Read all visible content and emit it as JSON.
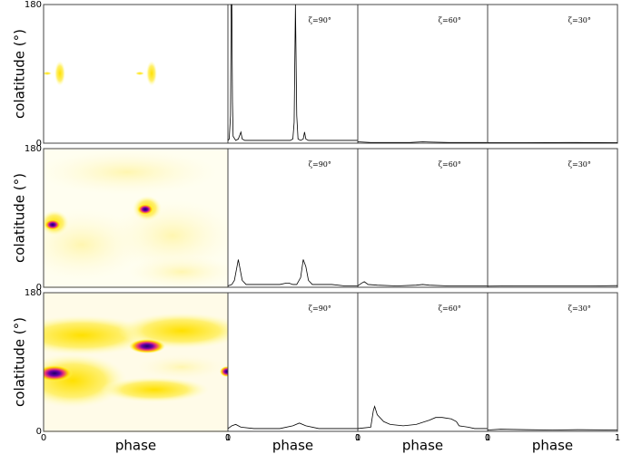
{
  "chart_data": [
    {
      "type": "heatmap",
      "ylabel": "colatitude (°)",
      "ylim": [
        0,
        180
      ],
      "yticks": [
        0,
        180
      ],
      "xlim": [
        0,
        1
      ]
    },
    {
      "type": "line",
      "annotation": "ζ=90°",
      "xlim": [
        0,
        1
      ],
      "ylim": [
        0,
        1
      ],
      "x": [
        0,
        0.01,
        0.02,
        0.025,
        0.03,
        0.035,
        0.04,
        0.06,
        0.08,
        0.1,
        0.11,
        0.13,
        0.2,
        0.3,
        0.4,
        0.48,
        0.5,
        0.51,
        0.52,
        0.53,
        0.54,
        0.56,
        0.58,
        0.59,
        0.6,
        0.62,
        0.7,
        0.8,
        0.9,
        1
      ],
      "values": [
        0.02,
        0.03,
        0.2,
        1,
        1,
        0.3,
        0.05,
        0.02,
        0.03,
        0.08,
        0.03,
        0.02,
        0.02,
        0.02,
        0.02,
        0.02,
        0.03,
        0.15,
        1,
        0.2,
        0.03,
        0.02,
        0.03,
        0.08,
        0.03,
        0.02,
        0.02,
        0.02,
        0.02,
        0.02
      ]
    },
    {
      "type": "line",
      "annotation": "ζ=60°",
      "xlim": [
        0,
        1
      ],
      "ylim": [
        0,
        1
      ],
      "x": [
        0,
        0.1,
        0.2,
        0.4,
        0.5,
        0.55,
        0.7,
        0.85,
        1
      ],
      "values": [
        0.01,
        0.005,
        0.005,
        0.005,
        0.01,
        0.008,
        0.005,
        0.005,
        0.005
      ]
    },
    {
      "type": "line",
      "annotation": "ζ=30°",
      "xlim": [
        0,
        1
      ],
      "ylim": [
        0,
        1
      ],
      "x": [
        0,
        0.3,
        0.6,
        1
      ],
      "values": [
        0.003,
        0.003,
        0.005,
        0.003
      ]
    },
    {
      "type": "heatmap",
      "ylabel": "colatitude (°)",
      "ylim": [
        0,
        180
      ],
      "yticks": [
        0,
        180
      ],
      "xlim": [
        0,
        1
      ]
    },
    {
      "type": "line",
      "annotation": "ζ=90°",
      "xlim": [
        0,
        1
      ],
      "ylim": [
        0,
        1
      ],
      "x": [
        0,
        0.03,
        0.05,
        0.07,
        0.08,
        0.09,
        0.11,
        0.14,
        0.2,
        0.3,
        0.4,
        0.45,
        0.47,
        0.5,
        0.53,
        0.56,
        0.58,
        0.6,
        0.62,
        0.65,
        0.7,
        0.8,
        0.9,
        1
      ],
      "values": [
        0.01,
        0.02,
        0.05,
        0.15,
        0.2,
        0.15,
        0.05,
        0.02,
        0.02,
        0.02,
        0.02,
        0.03,
        0.03,
        0.02,
        0.02,
        0.07,
        0.2,
        0.15,
        0.05,
        0.02,
        0.02,
        0.02,
        0.01,
        0.01
      ]
    },
    {
      "type": "line",
      "annotation": "ζ=60°",
      "xlim": [
        0,
        1
      ],
      "ylim": [
        0,
        1
      ],
      "x": [
        0,
        0.03,
        0.05,
        0.08,
        0.15,
        0.3,
        0.45,
        0.5,
        0.55,
        0.7,
        0.85,
        1
      ],
      "values": [
        0.01,
        0.03,
        0.04,
        0.02,
        0.015,
        0.01,
        0.015,
        0.02,
        0.015,
        0.01,
        0.01,
        0.01
      ]
    },
    {
      "type": "line",
      "annotation": "ζ=30°",
      "xlim": [
        0,
        1
      ],
      "ylim": [
        0,
        1
      ],
      "x": [
        0,
        0.2,
        0.5,
        0.8,
        1
      ],
      "values": [
        0.008,
        0.01,
        0.01,
        0.01,
        0.012
      ]
    },
    {
      "type": "heatmap",
      "ylabel": "colatitude (°)",
      "xlabel": "phase",
      "ylim": [
        0,
        180
      ],
      "yticks": [
        0,
        180
      ],
      "xlim": [
        0,
        1
      ],
      "xticks": [
        0,
        1
      ]
    },
    {
      "type": "line",
      "annotation": "ζ=90°",
      "xlabel": "phase",
      "xlim": [
        0,
        1
      ],
      "ylim": [
        0,
        1
      ],
      "xticks": [
        0,
        1
      ],
      "x": [
        0,
        0.03,
        0.06,
        0.1,
        0.2,
        0.3,
        0.4,
        0.5,
        0.55,
        0.6,
        0.7,
        0.8,
        0.9,
        1
      ],
      "values": [
        0.02,
        0.04,
        0.05,
        0.03,
        0.02,
        0.02,
        0.02,
        0.04,
        0.06,
        0.04,
        0.02,
        0.02,
        0.02,
        0.02
      ]
    },
    {
      "type": "line",
      "annotation": "ζ=60°",
      "xlabel": "phase",
      "xlim": [
        0,
        1
      ],
      "ylim": [
        0,
        1
      ],
      "xticks": [
        0,
        1
      ],
      "x": [
        0,
        0.1,
        0.12,
        0.13,
        0.15,
        0.2,
        0.25,
        0.35,
        0.45,
        0.55,
        0.6,
        0.65,
        0.72,
        0.76,
        0.78,
        0.85,
        0.9,
        1
      ],
      "values": [
        0.02,
        0.03,
        0.15,
        0.18,
        0.12,
        0.07,
        0.05,
        0.04,
        0.05,
        0.08,
        0.1,
        0.1,
        0.09,
        0.07,
        0.04,
        0.03,
        0.02,
        0.02
      ]
    },
    {
      "type": "line",
      "annotation": "ζ=30°",
      "xlabel": "phase",
      "xlim": [
        0,
        1
      ],
      "ylim": [
        0,
        1
      ],
      "xticks": [
        0,
        1
      ],
      "x": [
        0,
        0.1,
        0.3,
        0.5,
        0.7,
        1
      ],
      "values": [
        0.01,
        0.015,
        0.012,
        0.01,
        0.012,
        0.01
      ]
    }
  ]
}
